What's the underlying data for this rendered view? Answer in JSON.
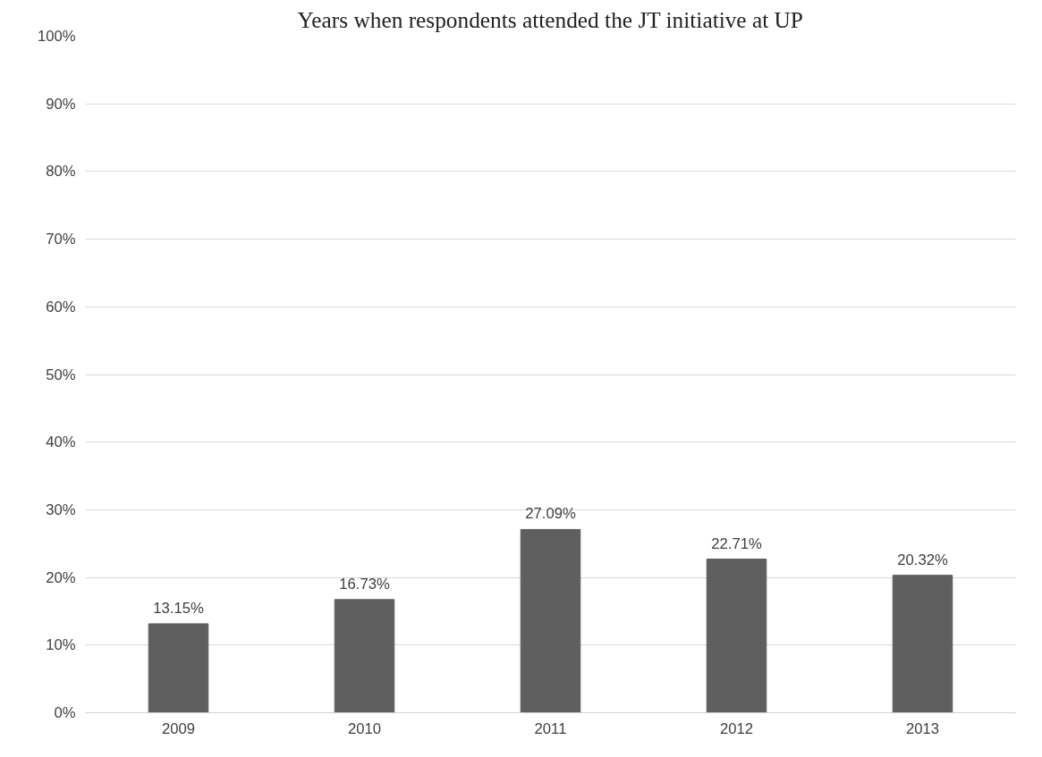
{
  "chart_data": {
    "type": "bar",
    "title": "Years when respondents attended the JT initiative at UP",
    "categories": [
      "2009",
      "2010",
      "2011",
      "2012",
      "2013"
    ],
    "values": [
      13.15,
      16.73,
      27.09,
      22.71,
      20.32
    ],
    "value_labels": [
      "13.15%",
      "16.73%",
      "27.09%",
      "22.71%",
      "20.32%"
    ],
    "color": "#5f5f5f",
    "ylim": [
      0,
      100
    ],
    "yticks": [
      {
        "value": 0,
        "label": "0%"
      },
      {
        "value": 10,
        "label": "10%"
      },
      {
        "value": 20,
        "label": "20%"
      },
      {
        "value": 30,
        "label": "30%"
      },
      {
        "value": 40,
        "label": "40%"
      },
      {
        "value": 50,
        "label": "50%"
      },
      {
        "value": 60,
        "label": "60%"
      },
      {
        "value": 70,
        "label": "70%"
      },
      {
        "value": 80,
        "label": "80%"
      },
      {
        "value": 90,
        "label": "90%"
      },
      {
        "value": 100,
        "label": "100%"
      }
    ],
    "grid": "y"
  }
}
